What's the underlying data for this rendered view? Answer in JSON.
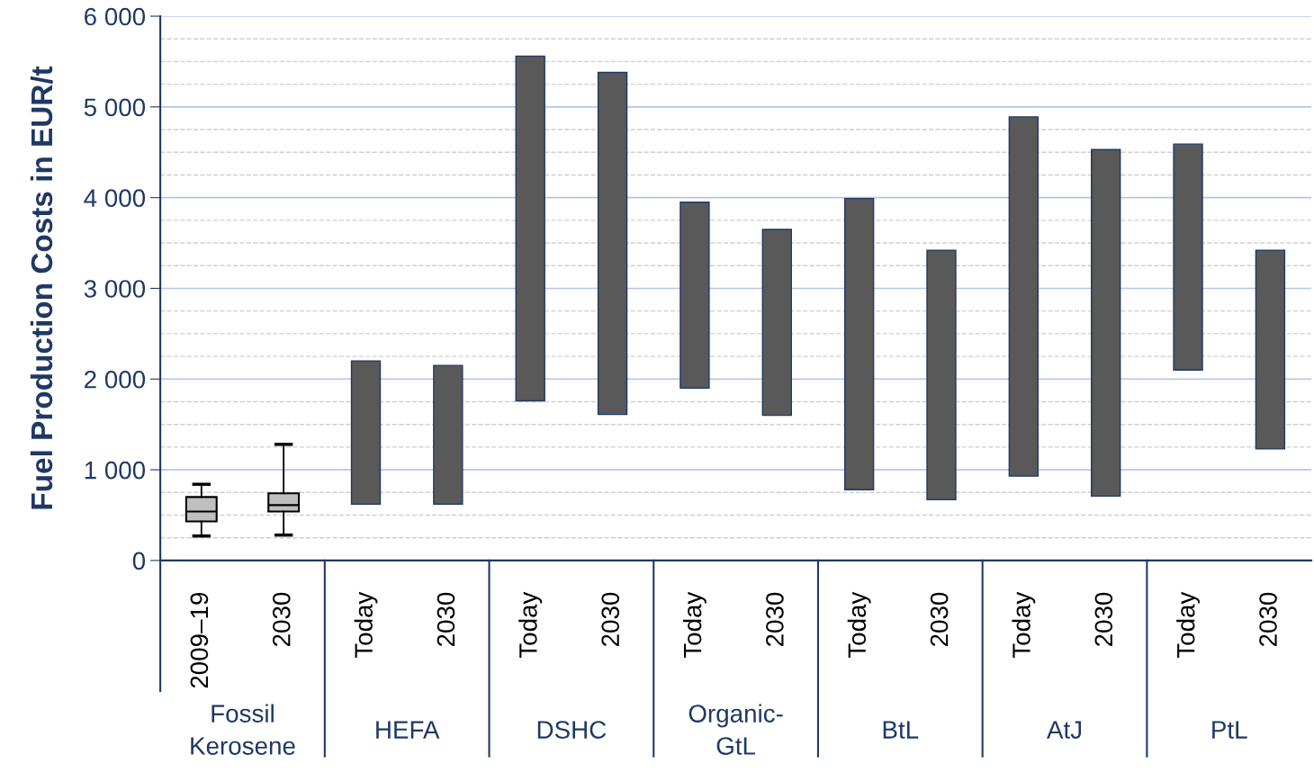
{
  "chart_data": {
    "type": "bar",
    "ylabel": "Fuel Production Costs in EUR/t",
    "categories": [
      "2009–19",
      "2030",
      "Today",
      "2030",
      "Today",
      "2030",
      "Today",
      "2030",
      "Today",
      "2030",
      "Today",
      "2030",
      "Today",
      "2030"
    ],
    "annotations": [
      "Fossil\nKerosene",
      "HEFA",
      "DSHC",
      "Organic-\nGtL",
      "BtL",
      "AtJ",
      "PtL"
    ],
    "ylim": [
      0,
      6000
    ],
    "yticks": [
      0,
      {
        "value": 1000,
        "label": "1 000"
      },
      {
        "value": 2000,
        "label": "2 000"
      },
      {
        "value": 3000,
        "label": "3 000"
      },
      {
        "value": 4000,
        "label": "4 000"
      },
      {
        "value": 5000,
        "label": "5 000"
      },
      {
        "value": 6000,
        "label": "6 000"
      }
    ],
    "grid": "y",
    "series": [
      {
        "type": "box",
        "color": "#bfbfbf",
        "boxes": [
          {
            "low": 270,
            "q1": 430,
            "median": 540,
            "q3": 700,
            "high": 840
          },
          {
            "low": 280,
            "q1": 540,
            "median": 610,
            "q3": 740,
            "high": 1280
          },
          null,
          null,
          null,
          null,
          null,
          null,
          null,
          null,
          null,
          null,
          null,
          null
        ]
      },
      {
        "color": "#595959",
        "values": [
          null,
          null,
          1580,
          1530,
          3800,
          3770,
          2050,
          2050,
          3210,
          2750,
          3960,
          3820,
          2490,
          2190
        ],
        "base": [
          null,
          null,
          620,
          620,
          1760,
          1610,
          1900,
          1600,
          780,
          670,
          930,
          710,
          2100,
          1230
        ]
      }
    ]
  }
}
